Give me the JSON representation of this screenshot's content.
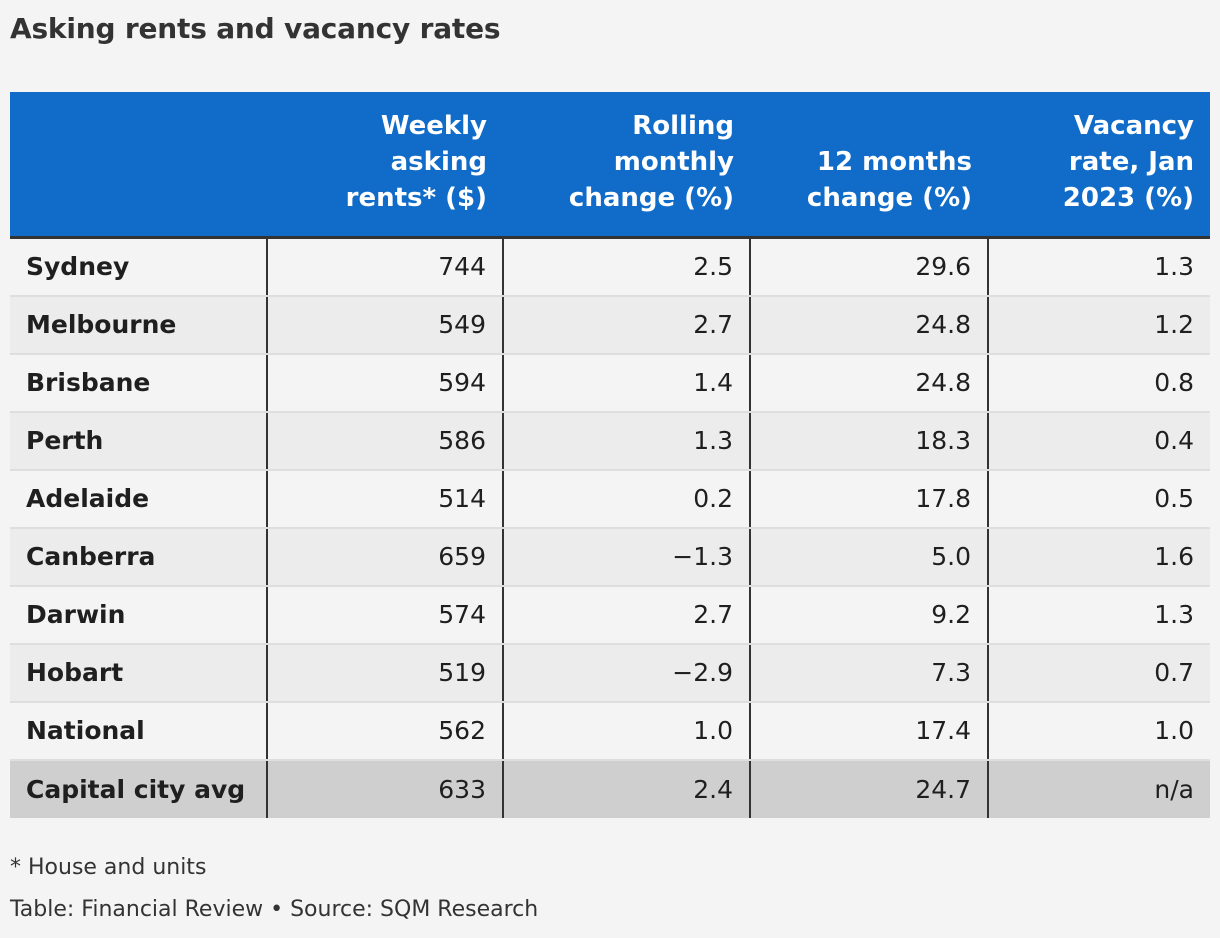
{
  "title": "Asking rents and vacancy rates",
  "table": {
    "columns": [
      [],
      [
        "Weekly",
        "asking",
        "rents* ($)"
      ],
      [
        "Rolling",
        "monthly",
        "change (%)"
      ],
      [
        "12 months",
        "change (%)"
      ],
      [
        "Vacancy",
        "rate, Jan",
        "2023 (%)"
      ]
    ]
  },
  "chart_data": {
    "type": "table",
    "columns": [
      "",
      "Weekly asking rents* ($)",
      "Rolling monthly change (%)",
      "12 months change (%)",
      "Vacancy rate, Jan 2023 (%)"
    ],
    "rows": [
      [
        "Sydney",
        "744",
        "2.5",
        "29.6",
        "1.3"
      ],
      [
        "Melbourne",
        "549",
        "2.7",
        "24.8",
        "1.2"
      ],
      [
        "Brisbane",
        "594",
        "1.4",
        "24.8",
        "0.8"
      ],
      [
        "Perth",
        "586",
        "1.3",
        "18.3",
        "0.4"
      ],
      [
        "Adelaide",
        "514",
        "0.2",
        "17.8",
        "0.5"
      ],
      [
        "Canberra",
        "659",
        "−1.3",
        "5.0",
        "1.6"
      ],
      [
        "Darwin",
        "574",
        "2.7",
        "9.2",
        "1.3"
      ],
      [
        "Hobart",
        "519",
        "−2.9",
        "7.3",
        "0.7"
      ],
      [
        "National",
        "562",
        "1.0",
        "17.4",
        "1.0"
      ],
      [
        "Capital city avg",
        "633",
        "2.4",
        "24.7",
        "n/a"
      ]
    ],
    "highlight_row": "Capital city avg"
  },
  "footnote": "* House and units",
  "source": "Table: Financial Review • Source: SQM Research",
  "colors": {
    "header_bg": "#106cc8",
    "header_text": "#ffffff",
    "row_odd": "#f4f4f4",
    "row_even": "#ececec",
    "highlight_row": "#cfcfcf",
    "page_bg": "#f4f4f4"
  }
}
